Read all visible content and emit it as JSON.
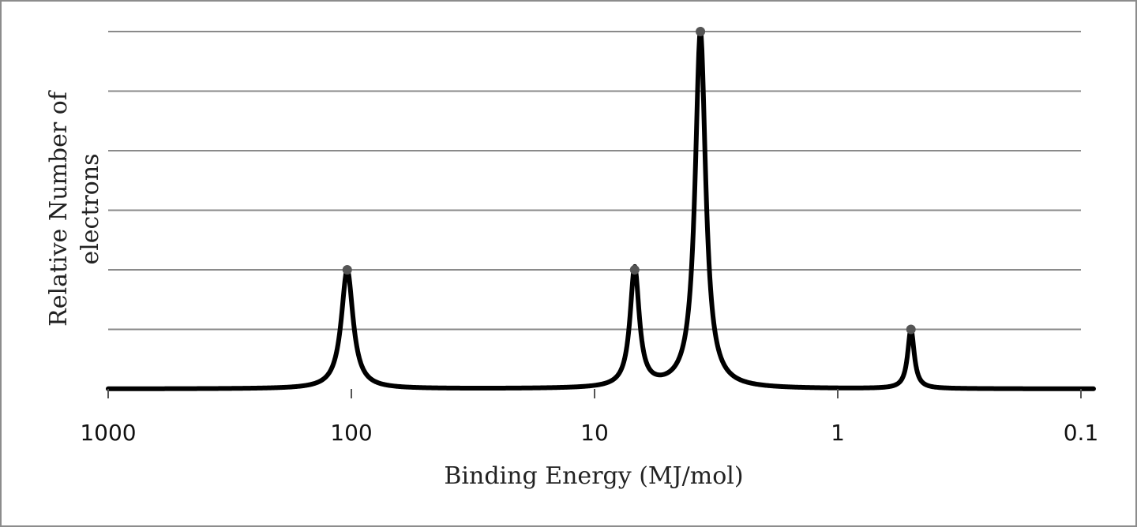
{
  "chart_data": {
    "type": "line",
    "title": "",
    "xlabel": "Binding Energy (MJ/mol)",
    "ylabel_lines": [
      "Relative Number of",
      "electrons"
    ],
    "x_scale": "log",
    "x_reversed": true,
    "xlim": [
      1000,
      0.1
    ],
    "ylim": [
      0,
      6
    ],
    "x_ticks": [
      1000,
      100,
      10,
      1,
      0.1
    ],
    "x_tick_labels": [
      "1000",
      "100",
      "10",
      "1",
      "0.1"
    ],
    "y_gridlines": [
      1,
      2,
      3,
      4,
      5,
      6
    ],
    "grid": true,
    "legend": "none",
    "line_color": "#000000",
    "peaks": [
      {
        "x": 104,
        "y": 2
      },
      {
        "x": 6.84,
        "y": 2
      },
      {
        "x": 3.67,
        "y": 6
      },
      {
        "x": 0.5,
        "y": 1
      }
    ]
  }
}
